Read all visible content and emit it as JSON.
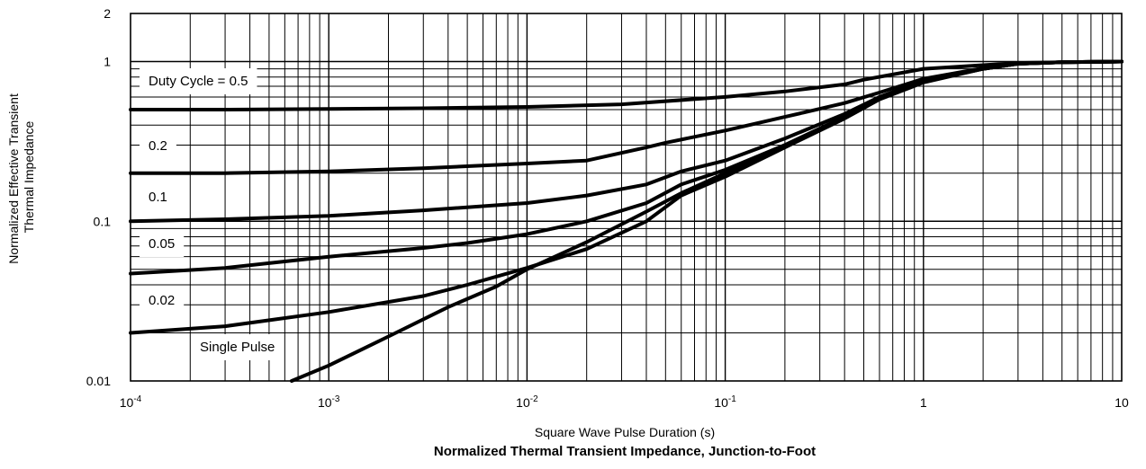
{
  "chart_data": {
    "type": "line",
    "title": "Normalized Thermal Transient Impedance, Junction-to-Foot",
    "xlabel": "Square Wave Pulse Duration (s)",
    "ylabel": "Normalized Effective Transient Thermal Impedance",
    "x_scale": "log",
    "y_scale": "log",
    "xlim": [
      0.0001,
      10
    ],
    "ylim": [
      0.01,
      2
    ],
    "grid": true,
    "x_ticks": [
      {
        "value": 0.0001,
        "base": "10",
        "exp": "-4"
      },
      {
        "value": 0.001,
        "base": "10",
        "exp": "-3"
      },
      {
        "value": 0.01,
        "base": "10",
        "exp": "-2"
      },
      {
        "value": 0.1,
        "base": "10",
        "exp": "-1"
      },
      {
        "value": 1,
        "base": "1",
        "exp": ""
      },
      {
        "value": 10,
        "base": "10",
        "exp": ""
      }
    ],
    "y_ticks": [
      {
        "value": 2,
        "label": "2"
      },
      {
        "value": 1,
        "label": "1"
      },
      {
        "value": 0.1,
        "label": "0.1"
      },
      {
        "value": 0.01,
        "label": "0.01"
      }
    ],
    "series": [
      {
        "name": "Duty Cycle = 0.5",
        "x": [
          0.0001,
          0.0003,
          0.001,
          0.003,
          0.01,
          0.03,
          0.1,
          0.2,
          0.4,
          0.5,
          0.7,
          1,
          2,
          3,
          5,
          10
        ],
        "y": [
          0.5,
          0.5,
          0.505,
          0.51,
          0.52,
          0.54,
          0.6,
          0.65,
          0.72,
          0.77,
          0.83,
          0.9,
          0.95,
          0.98,
          0.99,
          1.0
        ]
      },
      {
        "name": "0.2",
        "x": [
          0.0001,
          0.0003,
          0.001,
          0.003,
          0.01,
          0.02,
          0.04,
          0.05,
          0.1,
          0.2,
          0.4,
          0.6,
          1,
          2,
          3,
          5,
          10
        ],
        "y": [
          0.2,
          0.2,
          0.205,
          0.215,
          0.23,
          0.24,
          0.29,
          0.31,
          0.37,
          0.45,
          0.55,
          0.64,
          0.78,
          0.91,
          0.97,
          0.99,
          1.0
        ]
      },
      {
        "name": "0.1",
        "x": [
          0.0001,
          0.0003,
          0.001,
          0.003,
          0.01,
          0.02,
          0.04,
          0.06,
          0.1,
          0.2,
          0.4,
          0.6,
          1,
          2,
          3,
          5,
          10
        ],
        "y": [
          0.1,
          0.103,
          0.108,
          0.117,
          0.13,
          0.145,
          0.17,
          0.205,
          0.24,
          0.33,
          0.47,
          0.6,
          0.76,
          0.9,
          0.97,
          0.99,
          1.0
        ]
      },
      {
        "name": "0.05",
        "x": [
          0.0001,
          0.0003,
          0.0006,
          0.001,
          0.003,
          0.005,
          0.01,
          0.02,
          0.04,
          0.06,
          0.1,
          0.2,
          0.4,
          0.6,
          1,
          2,
          3,
          5,
          10
        ],
        "y": [
          0.047,
          0.051,
          0.056,
          0.06,
          0.068,
          0.073,
          0.083,
          0.1,
          0.13,
          0.17,
          0.21,
          0.3,
          0.45,
          0.59,
          0.75,
          0.9,
          0.97,
          0.99,
          1.0
        ]
      },
      {
        "name": "0.02",
        "x": [
          0.0001,
          0.0003,
          0.001,
          0.003,
          0.005,
          0.01,
          0.02,
          0.04,
          0.06,
          0.1,
          0.2,
          0.4,
          0.6,
          1,
          2,
          3,
          5,
          10
        ],
        "y": [
          0.02,
          0.022,
          0.027,
          0.034,
          0.04,
          0.051,
          0.067,
          0.1,
          0.145,
          0.19,
          0.29,
          0.44,
          0.58,
          0.74,
          0.9,
          0.97,
          0.99,
          1.0
        ]
      },
      {
        "name": "Single Pulse",
        "x": [
          0.00065,
          0.001,
          0.002,
          0.004,
          0.007,
          0.01,
          0.02,
          0.04,
          0.06,
          0.1,
          0.2,
          0.4,
          0.6,
          1,
          2,
          3,
          5,
          10
        ],
        "y": [
          0.01,
          0.0125,
          0.019,
          0.029,
          0.039,
          0.05,
          0.074,
          0.115,
          0.15,
          0.2,
          0.3,
          0.45,
          0.59,
          0.75,
          0.9,
          0.97,
          0.99,
          1.0
        ]
      }
    ]
  }
}
